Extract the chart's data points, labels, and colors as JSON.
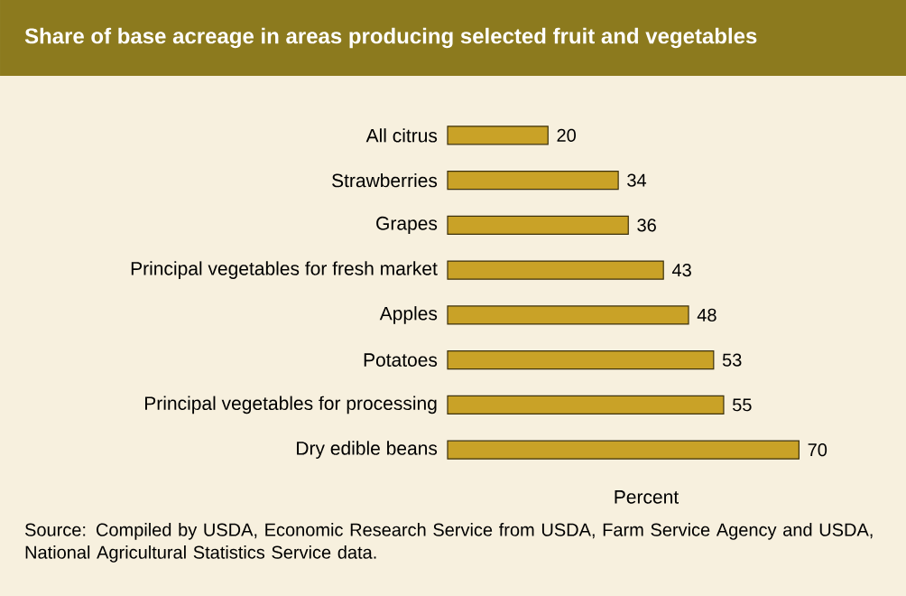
{
  "chart_data": {
    "type": "bar",
    "orientation": "horizontal",
    "title": "Share of base acreage in areas producing selected fruit and vegetables",
    "xlabel": "Percent",
    "categories": [
      "All citrus",
      "Strawberries",
      "Grapes",
      "Principal vegetables for fresh market",
      "Apples",
      "Potatoes",
      "Principal vegetables for processing",
      "Dry edible beans"
    ],
    "values": [
      20,
      34,
      36,
      43,
      48,
      53,
      55,
      70
    ],
    "color": "#c9a227",
    "data_labels": true,
    "tick_labels": "y",
    "annotations": [
      "Source: Compiled by USDA, Economic Research Service from USDA, Farm Service Agency and USDA, National Agricultural Statistics Service data."
    ]
  }
}
